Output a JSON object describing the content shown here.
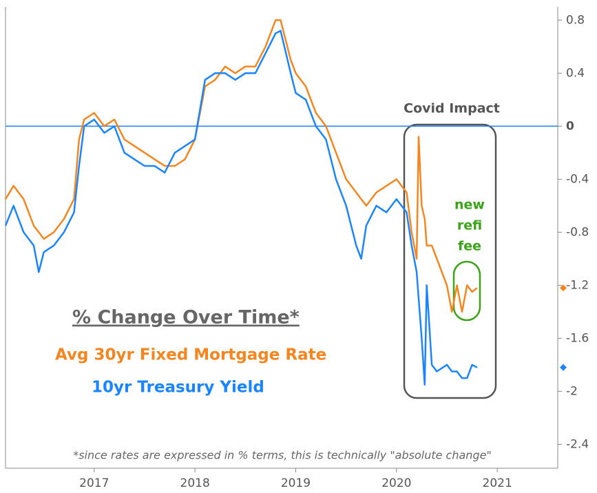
{
  "chart_data": {
    "type": "line",
    "x": [
      2016.12,
      2016.2,
      2016.3,
      2016.4,
      2016.45,
      2016.5,
      2016.6,
      2016.7,
      2016.8,
      2016.85,
      2016.9,
      2017.0,
      2017.1,
      2017.2,
      2017.3,
      2017.4,
      2017.5,
      2017.6,
      2017.7,
      2017.8,
      2017.9,
      2018.0,
      2018.1,
      2018.2,
      2018.3,
      2018.4,
      2018.5,
      2018.6,
      2018.7,
      2018.8,
      2018.85,
      2018.95,
      2019.0,
      2019.1,
      2019.2,
      2019.3,
      2019.4,
      2019.5,
      2019.6,
      2019.65,
      2019.7,
      2019.8,
      2019.9,
      2020.0,
      2020.1,
      2020.15,
      2020.2,
      2020.22,
      2020.25,
      2020.28,
      2020.3,
      2020.35,
      2020.4,
      2020.5,
      2020.55,
      2020.6,
      2020.65,
      2020.7,
      2020.75,
      2020.8
    ],
    "series": [
      {
        "name": "Avg 30yr Fixed Mortgage Rate",
        "color": "#f5861f",
        "values": [
          -0.55,
          -0.45,
          -0.55,
          -0.75,
          -0.8,
          -0.85,
          -0.8,
          -0.7,
          -0.55,
          -0.1,
          0.05,
          0.1,
          0.0,
          0.05,
          -0.1,
          -0.15,
          -0.2,
          -0.25,
          -0.3,
          -0.3,
          -0.25,
          -0.1,
          0.3,
          0.35,
          0.45,
          0.4,
          0.45,
          0.45,
          0.6,
          0.8,
          0.8,
          0.5,
          0.4,
          0.3,
          0.1,
          0.0,
          -0.2,
          -0.4,
          -0.5,
          -0.55,
          -0.6,
          -0.5,
          -0.45,
          -0.4,
          -0.5,
          -0.8,
          -1.0,
          -0.08,
          -0.6,
          -0.7,
          -0.9,
          -0.9,
          -1.0,
          -1.2,
          -1.4,
          -1.2,
          -1.4,
          -1.2,
          -1.25,
          -1.22
        ]
      },
      {
        "name": "10yr Treasury Yield",
        "color": "#1a85ff",
        "values": [
          -0.75,
          -0.6,
          -0.8,
          -0.9,
          -1.1,
          -0.95,
          -0.9,
          -0.8,
          -0.65,
          -0.3,
          0.0,
          0.05,
          -0.05,
          0.0,
          -0.2,
          -0.25,
          -0.3,
          -0.3,
          -0.35,
          -0.2,
          -0.15,
          -0.1,
          0.35,
          0.4,
          0.4,
          0.35,
          0.4,
          0.4,
          0.55,
          0.7,
          0.72,
          0.4,
          0.25,
          0.2,
          0.0,
          -0.1,
          -0.4,
          -0.6,
          -0.9,
          -1.0,
          -0.75,
          -0.6,
          -0.65,
          -0.55,
          -0.65,
          -0.9,
          -1.1,
          -1.3,
          -1.6,
          -1.95,
          -1.2,
          -1.8,
          -1.85,
          -1.8,
          -1.85,
          -1.85,
          -1.9,
          -1.9,
          -1.8,
          -1.82
        ]
      }
    ],
    "xlim": [
      2016.12,
      2021.6
    ],
    "xticks": [
      2017,
      2018,
      2019,
      2020,
      2021
    ],
    "ylim": [
      -2.58,
      0.9
    ],
    "yticks": [
      0.8,
      0.4,
      0,
      -0.4,
      -0.8,
      -1.2,
      -1.6,
      -2,
      -2.4
    ],
    "reference_line": 0,
    "legend_title": "% Change Over Time*",
    "annotations": {
      "covid": "Covid Impact",
      "refi": [
        "new",
        "refi",
        "fee"
      ]
    },
    "footnote": "*since rates are expressed in % terms, this is technically \"absolute change\""
  }
}
